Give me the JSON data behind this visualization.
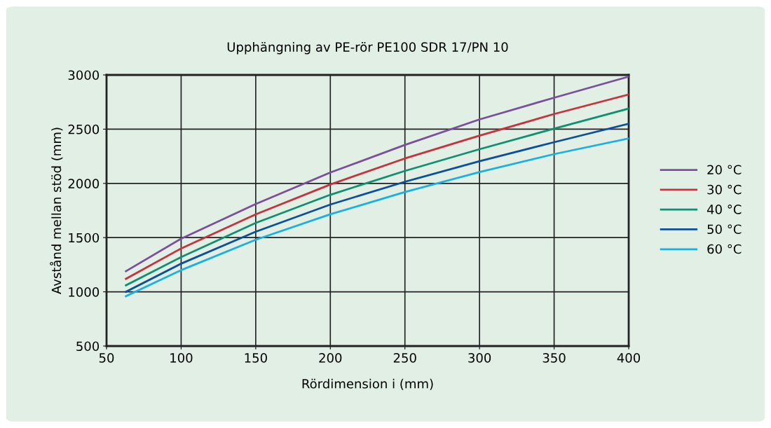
{
  "chart_data": {
    "type": "line",
    "title": "Upphängning av PE-rör PE100 SDR 17/PN 10",
    "xlabel": "Rördimension i (mm)",
    "ylabel": "Avstånd mellan stöd (mm)",
    "x": [
      63,
      100,
      150,
      200,
      250,
      300,
      350,
      400
    ],
    "series": [
      {
        "name": "20 °C",
        "color": "#7b4fa0",
        "values": [
          1190,
          1490,
          1810,
          2100,
          2355,
          2590,
          2790,
          2985
        ]
      },
      {
        "name": "30 °C",
        "color": "#c8323c",
        "values": [
          1120,
          1400,
          1715,
          1990,
          2230,
          2440,
          2640,
          2820
        ]
      },
      {
        "name": "40 °C",
        "color": "#0f9070",
        "values": [
          1060,
          1320,
          1635,
          1895,
          2115,
          2315,
          2505,
          2690
        ]
      },
      {
        "name": "50 °C",
        "color": "#0a4fa0",
        "values": [
          1000,
          1260,
          1555,
          1805,
          2015,
          2205,
          2380,
          2550
        ]
      },
      {
        "name": "60 °C",
        "color": "#19b0e8",
        "values": [
          960,
          1200,
          1480,
          1715,
          1920,
          2105,
          2270,
          2415
        ]
      }
    ],
    "xlim": [
      50,
      400
    ],
    "ylim": [
      500,
      3000
    ],
    "xticks": [
      50,
      100,
      150,
      200,
      250,
      300,
      350,
      400
    ],
    "yticks": [
      500,
      1000,
      1500,
      2000,
      2500,
      3000
    ],
    "grid": true,
    "legend": "right",
    "marker": "none",
    "line_style": "solid"
  }
}
